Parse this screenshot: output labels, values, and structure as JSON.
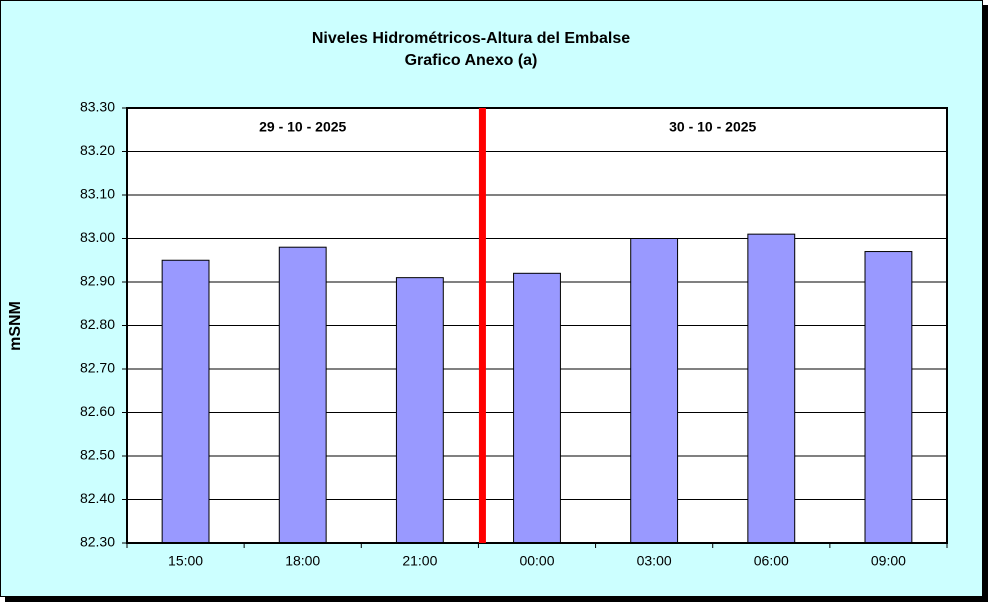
{
  "chart_data": {
    "type": "bar",
    "title": "Niveles Hidrométricos-Altura del Embalse",
    "subtitle": "Grafico Anexo (a)",
    "y_label": "mSNM",
    "categories": [
      "15:00",
      "18:00",
      "21:00",
      "00:00",
      "03:00",
      "06:00",
      "09:00"
    ],
    "values": [
      82.95,
      82.98,
      82.91,
      82.92,
      83.0,
      83.01,
      82.97
    ],
    "color": "#9999ff",
    "ylim": [
      82.3,
      83.3
    ],
    "yticks": [
      {
        "value": 82.3,
        "label": "82.30"
      },
      {
        "value": 82.4,
        "label": "82.40"
      },
      {
        "value": 82.5,
        "label": "82.50"
      },
      {
        "value": 82.6,
        "label": "82.60"
      },
      {
        "value": 82.7,
        "label": "82.70"
      },
      {
        "value": 82.8,
        "label": "82.80"
      },
      {
        "value": 82.9,
        "label": "82.90"
      },
      {
        "value": 83.0,
        "label": "83.00"
      },
      {
        "value": 83.1,
        "label": "83.10"
      },
      {
        "value": 83.2,
        "label": "83.20"
      },
      {
        "value": 83.3,
        "label": "83.30"
      }
    ],
    "grid": true,
    "date_groups": [
      {
        "label": "29 - 10 - 2025",
        "count": 3
      },
      {
        "label": "30 - 10 - 2025",
        "count": 4
      }
    ],
    "divider_color": "#ff0000"
  }
}
